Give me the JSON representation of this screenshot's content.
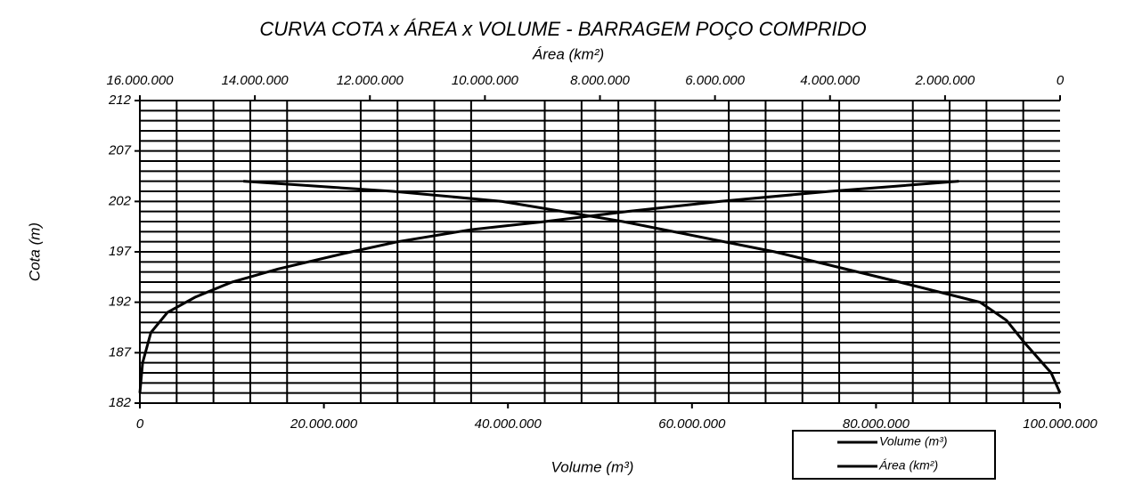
{
  "chart_data": {
    "type": "line",
    "title": "CURVA COTA x ÁREA x VOLUME - BARRAGEM POÇO COMPRIDO",
    "xlabel": "Volume (m³)",
    "x2label": "Área (km²)",
    "ylabel": "Cota (m)",
    "ylim": [
      182,
      212
    ],
    "yticks": [
      182,
      187,
      192,
      197,
      202,
      207,
      212
    ],
    "xlim": [
      0,
      100000000
    ],
    "xticks": [
      0,
      {
        "value": 20000000,
        "label": "20.000.000"
      },
      {
        "value": 40000000,
        "label": "40.000.000"
      },
      {
        "value": 60000000,
        "label": "60.000.000"
      },
      {
        "value": 80000000,
        "label": "80.000.000"
      },
      {
        "value": 100000000,
        "label": "100.000.000"
      }
    ],
    "x2lim": [
      16000000,
      0
    ],
    "x2ticks": [
      {
        "value": 16000000,
        "label": "16.000.000"
      },
      {
        "value": 14000000,
        "label": "14.000.000"
      },
      {
        "value": 12000000,
        "label": "12.000.000"
      },
      {
        "value": 10000000,
        "label": "10.000.000"
      },
      {
        "value": 8000000,
        "label": "8.000.000"
      },
      {
        "value": 6000000,
        "label": "6.000.000"
      },
      {
        "value": 4000000,
        "label": "4.000.000"
      },
      {
        "value": 2000000,
        "label": "2.000.000"
      },
      0
    ],
    "grid": true,
    "legend": "bottom-right",
    "series": [
      {
        "name": "Volume (m³)",
        "color": "#000000",
        "axis": "x",
        "x": [
          0,
          300000,
          1200000,
          3000000,
          6000000,
          10000000,
          15000000,
          22000000,
          28000000,
          36000000,
          44000000,
          53000000,
          63000000,
          75000000,
          89000000
        ],
        "y": [
          183,
          186,
          189,
          191,
          192.5,
          194,
          195.3,
          196.8,
          198,
          199.2,
          200,
          201,
          202,
          203,
          204
        ]
      },
      {
        "name": "Área (km²)",
        "color": "#000000",
        "axis": "x2",
        "x": [
          0,
          155000,
          620000,
          930000,
          1390000,
          2790000,
          4960000,
          7600000,
          9700000,
          11600000,
          14200000
        ],
        "y": [
          183,
          185,
          188,
          190.2,
          192,
          194,
          197,
          200,
          202,
          203,
          204
        ]
      }
    ]
  }
}
